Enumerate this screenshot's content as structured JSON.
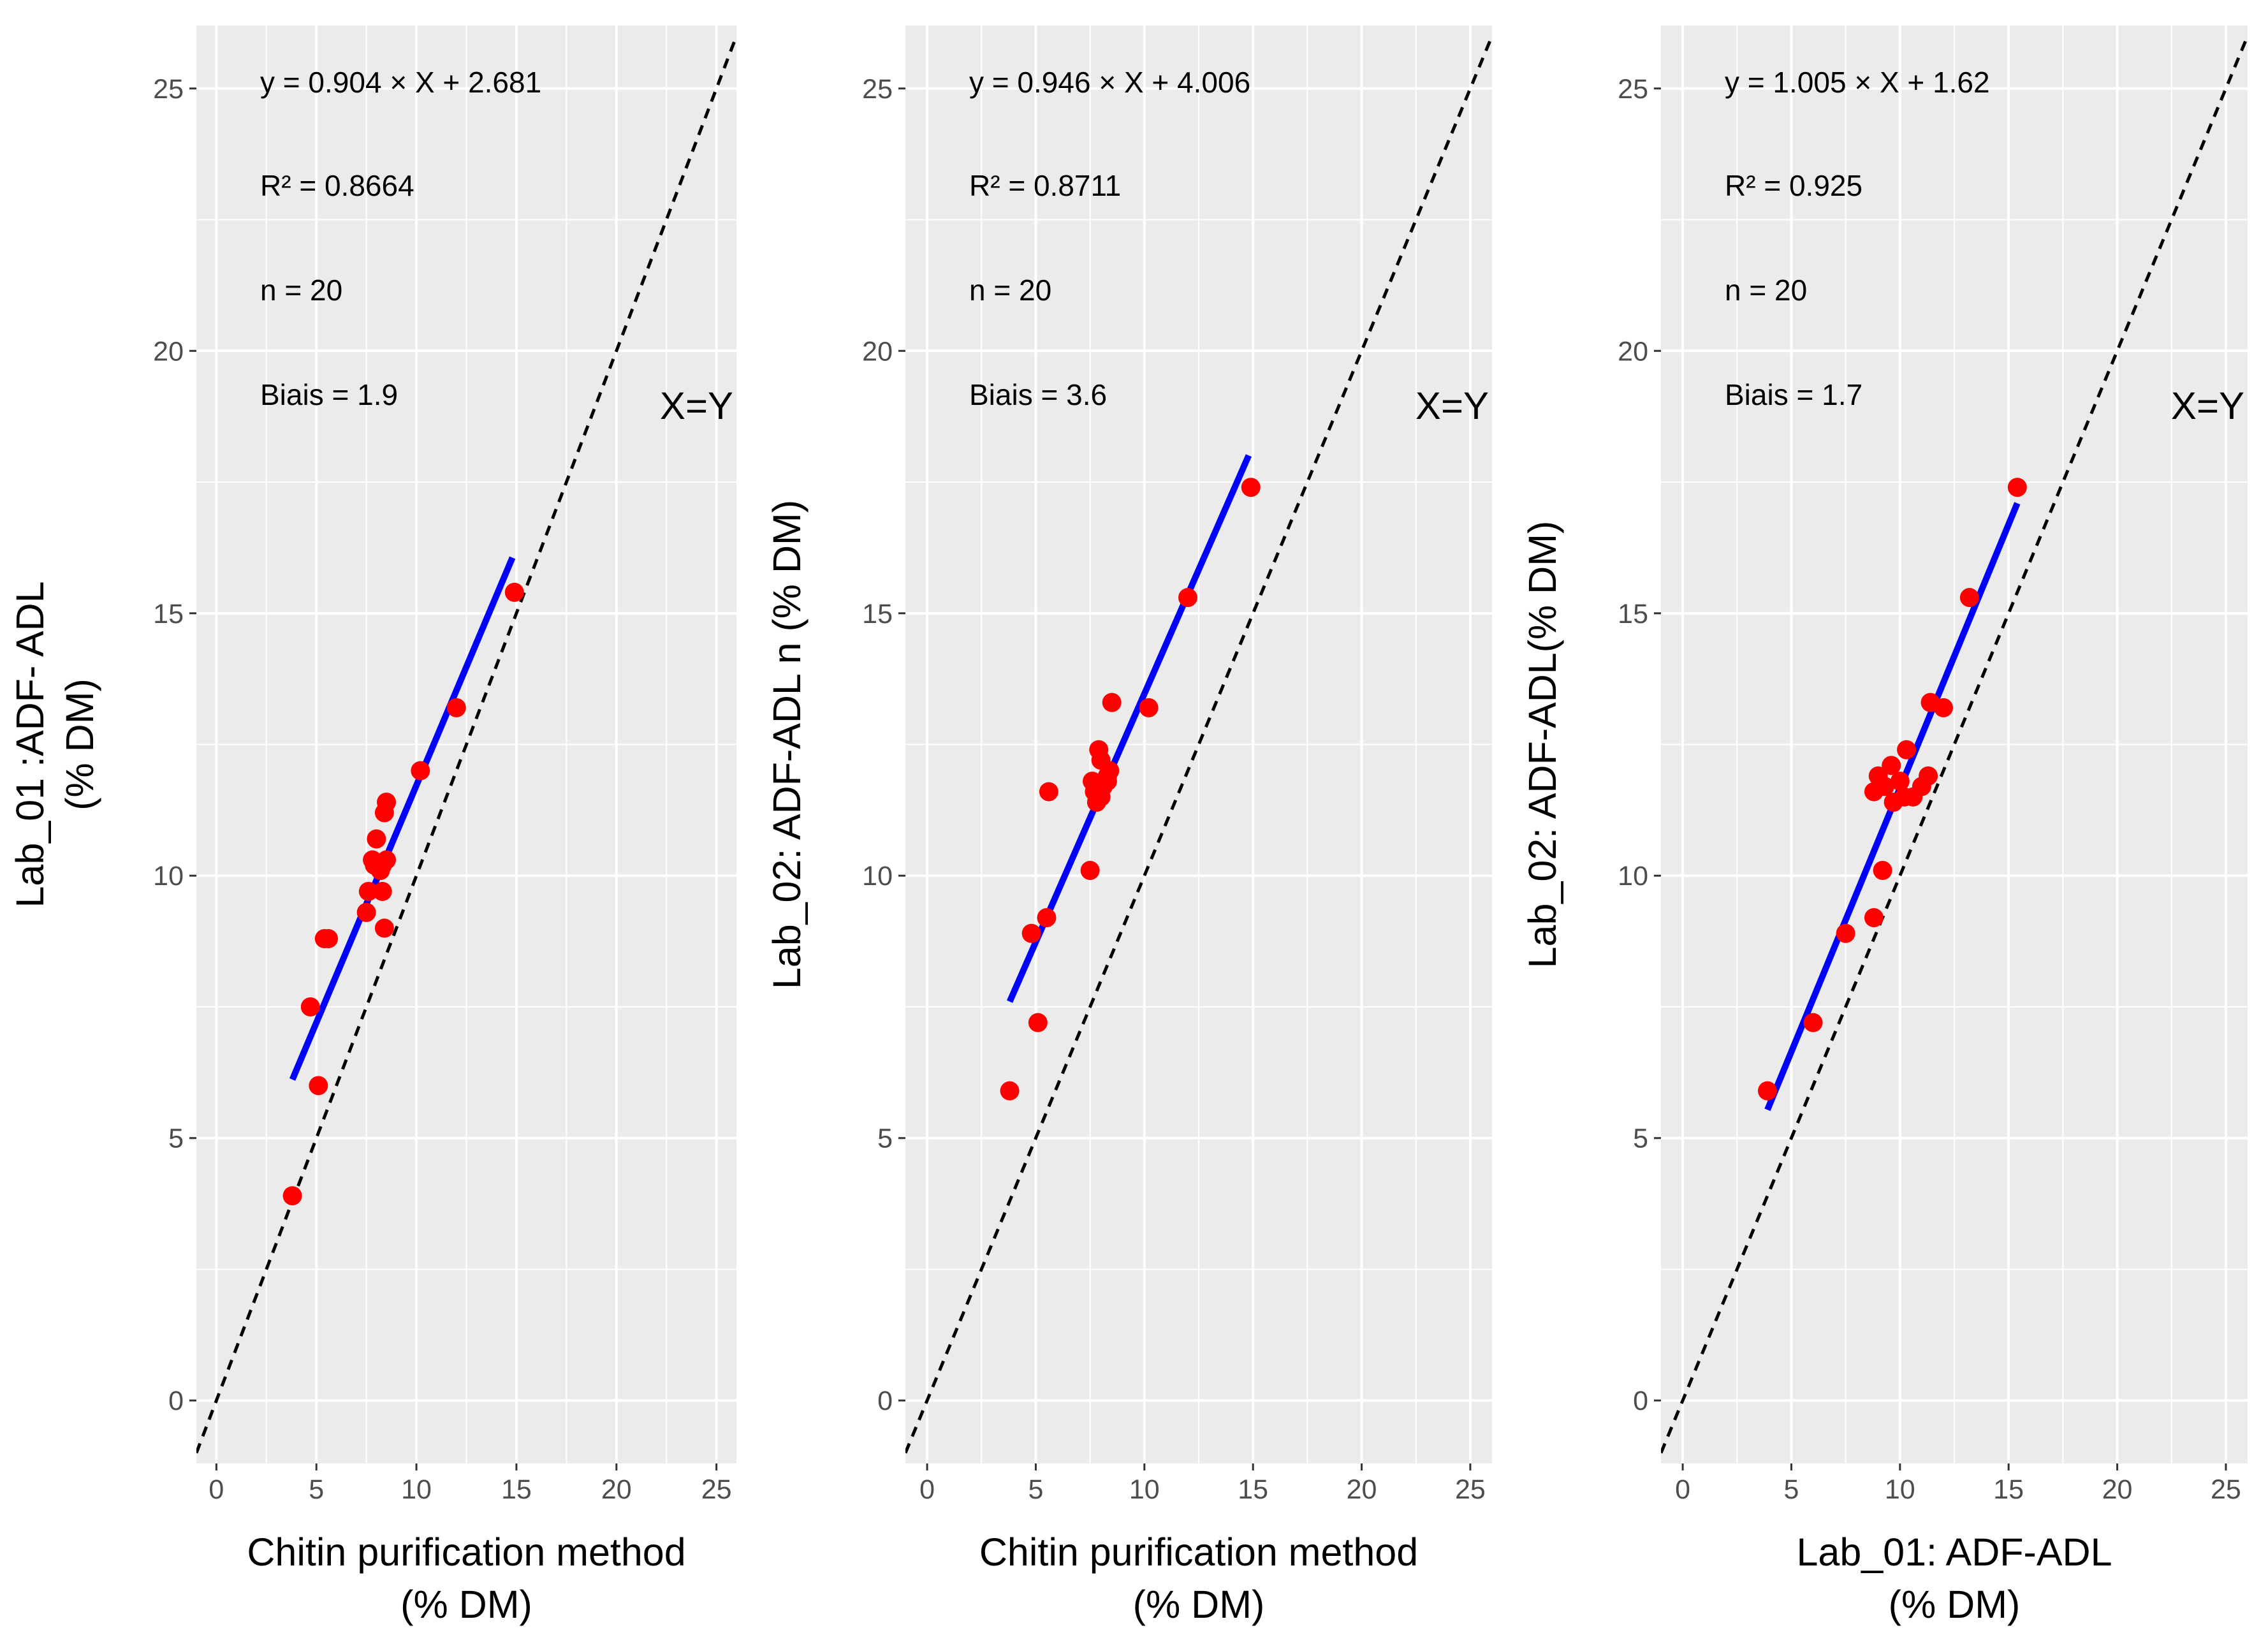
{
  "chart_data": [
    {
      "type": "scatter",
      "xlabel": [
        "Chitin purification method",
        "(% DM)"
      ],
      "ylabel": [
        "Lab_01 :ADF- ADL",
        "(% DM)"
      ],
      "xlim": [
        -1,
        26
      ],
      "ylim": [
        -1.2,
        26.2
      ],
      "xticks": [
        0,
        5,
        10,
        15,
        20,
        25
      ],
      "yticks": [
        0,
        5,
        10,
        15,
        20,
        25
      ],
      "grid": true,
      "annotations": [
        "y =  0.904  × X + 2.681",
        "R² =  0.8664",
        "n =  20",
        "Biais =  1.9"
      ],
      "identity_label": "X=Y",
      "point_color": "#ff0000",
      "fit_color": "#0000ff",
      "fit_line": {
        "x": [
          3.8,
          14.8
        ]
      },
      "points": [
        [
          3.8,
          3.9
        ],
        [
          5.1,
          6.0
        ],
        [
          4.7,
          7.5
        ],
        [
          5.4,
          8.8
        ],
        [
          5.6,
          8.8
        ],
        [
          8.4,
          9.0
        ],
        [
          7.5,
          9.3
        ],
        [
          7.6,
          9.7
        ],
        [
          8.3,
          9.7
        ],
        [
          7.9,
          10.2
        ],
        [
          8.3,
          10.2
        ],
        [
          8.5,
          10.3
        ],
        [
          7.8,
          10.3
        ],
        [
          8.0,
          10.7
        ],
        [
          8.4,
          11.2
        ],
        [
          8.5,
          11.4
        ],
        [
          10.2,
          12.0
        ],
        [
          12.0,
          13.2
        ],
        [
          14.9,
          15.4
        ],
        [
          8.2,
          10.1
        ]
      ]
    },
    {
      "type": "scatter",
      "xlabel": [
        "Chitin purification method",
        "(% DM)"
      ],
      "ylabel": [
        "Lab_02: ADF-ADL  n (% DM)"
      ],
      "xlim": [
        -1,
        26
      ],
      "ylim": [
        -1.2,
        26.2
      ],
      "xticks": [
        0,
        5,
        10,
        15,
        20,
        25
      ],
      "yticks": [
        0,
        5,
        10,
        15,
        20,
        25
      ],
      "grid": true,
      "annotations": [
        "y =  0.946  × X + 4.006",
        "R² =  0.8711",
        "n =  20",
        "Biais =  3.6"
      ],
      "identity_label": "X=Y",
      "point_color": "#ff0000",
      "fit_color": "#0000ff",
      "fit_line": {
        "x": [
          3.8,
          14.8
        ]
      },
      "points": [
        [
          3.8,
          5.9
        ],
        [
          5.1,
          7.2
        ],
        [
          4.8,
          8.9
        ],
        [
          5.5,
          9.2
        ],
        [
          7.5,
          10.1
        ],
        [
          5.6,
          11.6
        ],
        [
          7.8,
          11.4
        ],
        [
          8.0,
          11.5
        ],
        [
          7.6,
          11.8
        ],
        [
          8.3,
          11.8
        ],
        [
          8.4,
          12.0
        ],
        [
          8.0,
          12.2
        ],
        [
          7.9,
          12.4
        ],
        [
          8.5,
          13.3
        ],
        [
          10.2,
          13.2
        ],
        [
          12.0,
          15.3
        ],
        [
          14.9,
          17.4
        ],
        [
          8.1,
          11.7
        ],
        [
          8.3,
          11.9
        ],
        [
          7.7,
          11.6
        ]
      ]
    },
    {
      "type": "scatter",
      "xlabel": [
        "Lab_01: ADF-ADL",
        "(% DM)"
      ],
      "ylabel": [
        "Lab_02: ADF-ADL(% DM)"
      ],
      "xlim": [
        -1,
        26
      ],
      "ylim": [
        -1.2,
        26.2
      ],
      "xticks": [
        0,
        5,
        10,
        15,
        20,
        25
      ],
      "yticks": [
        0,
        5,
        10,
        15,
        20,
        25
      ],
      "grid": true,
      "annotations": [
        "y =  1.005  × X + 1.62",
        "R² =  0.925",
        "n =  20",
        "Biais =  1.7"
      ],
      "identity_label": "X=Y",
      "point_color": "#ff0000",
      "fit_color": "#0000ff",
      "fit_line": {
        "x": [
          3.9,
          15.4
        ]
      },
      "points": [
        [
          3.9,
          5.9
        ],
        [
          6.0,
          7.2
        ],
        [
          7.5,
          8.9
        ],
        [
          8.8,
          9.2
        ],
        [
          9.2,
          10.1
        ],
        [
          8.8,
          11.6
        ],
        [
          9.3,
          11.7
        ],
        [
          9.7,
          11.4
        ],
        [
          10.2,
          11.5
        ],
        [
          10.6,
          11.5
        ],
        [
          11.0,
          11.7
        ],
        [
          9.0,
          11.9
        ],
        [
          9.6,
          12.1
        ],
        [
          10.0,
          11.8
        ],
        [
          10.3,
          12.4
        ],
        [
          11.3,
          11.9
        ],
        [
          11.4,
          13.3
        ],
        [
          12.0,
          13.2
        ],
        [
          13.2,
          15.3
        ],
        [
          15.4,
          17.4
        ]
      ]
    }
  ]
}
